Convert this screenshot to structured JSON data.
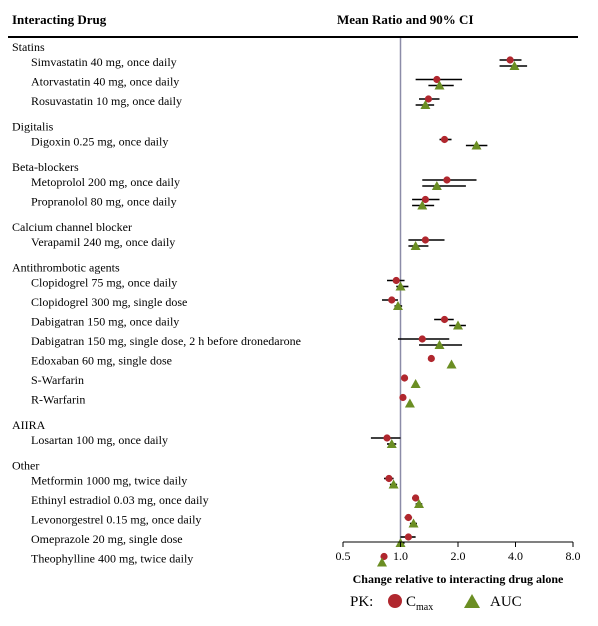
{
  "chart_data": {
    "type": "forest",
    "headers": {
      "left": "Interacting Drug",
      "right": "Mean Ratio and 90% CI"
    },
    "xlabel": "Change relative to interacting drug alone",
    "x_scale": "log2",
    "xlim": [
      0.5,
      8.0
    ],
    "x_ticks": [
      "0.5",
      "1.0",
      "2.0",
      "4.0",
      "8.0"
    ],
    "reference_line": 1.0,
    "legend": {
      "prefix": "PK:",
      "cmax_main": "C",
      "cmax_sub": "max",
      "auc": "AUC"
    },
    "colors": {
      "cmax": "#b0272e",
      "auc": "#6b8e23",
      "refline": "#8c8ca8"
    },
    "groups": [
      {
        "name": "Statins",
        "rows": [
          {
            "label": "Simvastatin 40 mg, once daily",
            "cmax": [
              3.75,
              3.3,
              4.3
            ],
            "auc": [
              3.95,
              3.3,
              4.6
            ]
          },
          {
            "label": "Atorvastatin 40 mg, once daily",
            "cmax": [
              1.55,
              1.2,
              2.1
            ],
            "auc": [
              1.6,
              1.4,
              1.9
            ]
          },
          {
            "label": "Rosuvastatin 10 mg, once daily",
            "cmax": [
              1.4,
              1.25,
              1.6
            ],
            "auc": [
              1.35,
              1.2,
              1.5
            ]
          }
        ]
      },
      {
        "name": "Digitalis",
        "rows": [
          {
            "label": "Digoxin 0.25 mg, once daily",
            "cmax": [
              1.7,
              1.6,
              1.85
            ],
            "auc": [
              2.5,
              2.2,
              2.85
            ]
          }
        ]
      },
      {
        "name": "Beta-blockers",
        "rows": [
          {
            "label": "Metoprolol 200 mg, once daily",
            "cmax": [
              1.75,
              1.3,
              2.5
            ],
            "auc": [
              1.55,
              1.3,
              2.2
            ]
          },
          {
            "label": "Propranolol 80 mg, once daily",
            "cmax": [
              1.35,
              1.15,
              1.6
            ],
            "auc": [
              1.3,
              1.15,
              1.5
            ]
          }
        ]
      },
      {
        "name": "Calcium channel blocker",
        "rows": [
          {
            "label": "Verapamil 240 mg, once daily",
            "cmax": [
              1.35,
              1.1,
              1.7
            ],
            "auc": [
              1.2,
              1.1,
              1.4
            ]
          }
        ]
      },
      {
        "name": "Antithrombotic agents",
        "rows": [
          {
            "label": "Clopidogrel 75 mg, once daily",
            "cmax": [
              0.95,
              0.85,
              1.05
            ],
            "auc": [
              1.0,
              0.95,
              1.1
            ]
          },
          {
            "label": "Clopidogrel 300 mg, single dose",
            "cmax": [
              0.9,
              0.8,
              0.97
            ],
            "auc": [
              0.97,
              0.93,
              1.02
            ]
          },
          {
            "label": "Dabigatran 150 mg, once daily",
            "cmax": [
              1.7,
              1.5,
              1.9
            ],
            "auc": [
              2.0,
              1.8,
              2.2
            ]
          },
          {
            "label": "Dabigatran 150 mg, single dose, 2 h before dronedarone",
            "cmax": [
              1.3,
              0.97,
              1.8
            ],
            "auc": [
              1.6,
              1.25,
              2.1
            ]
          },
          {
            "label": "Edoxaban 60 mg, single dose",
            "cmax": [
              1.45,
              1.4,
              1.5
            ],
            "auc": [
              1.85,
              1.82,
              1.9
            ]
          },
          {
            "label": "S-Warfarin",
            "cmax": [
              1.05,
              1.02,
              1.08
            ],
            "auc": [
              1.2,
              1.17,
              1.23
            ]
          },
          {
            "label": "R-Warfarin",
            "cmax": [
              1.03,
              1.01,
              1.05
            ],
            "auc": [
              1.12,
              1.09,
              1.15
            ]
          }
        ]
      },
      {
        "name": "AIIRA",
        "rows": [
          {
            "label": "Losartan 100 mg, once daily",
            "cmax": [
              0.85,
              0.7,
              1.0
            ],
            "auc": [
              0.9,
              0.85,
              0.95
            ]
          }
        ]
      },
      {
        "name": "Other",
        "rows": [
          {
            "label": "Metformin 1000 mg, twice daily",
            "cmax": [
              0.87,
              0.82,
              0.92
            ],
            "auc": [
              0.92,
              0.88,
              0.96
            ]
          },
          {
            "label": "Ethinyl estradiol 0.03 mg, once daily",
            "cmax": [
              1.2,
              1.15,
              1.25
            ],
            "auc": [
              1.25,
              1.2,
              1.3
            ]
          },
          {
            "label": "Levonorgestrel 0.15 mg, once daily",
            "cmax": [
              1.1,
              1.05,
              1.15
            ],
            "auc": [
              1.17,
              1.12,
              1.22
            ]
          },
          {
            "label": "Omeprazole 20 mg, single dose",
            "cmax": [
              1.1,
              1.0,
              1.2
            ],
            "auc": [
              1.0,
              0.97,
              1.05
            ]
          },
          {
            "label": "Theophylline 400 mg, twice daily",
            "cmax": [
              0.82,
              0.8,
              0.84
            ],
            "auc": [
              0.8,
              0.78,
              0.82
            ]
          }
        ]
      }
    ]
  }
}
